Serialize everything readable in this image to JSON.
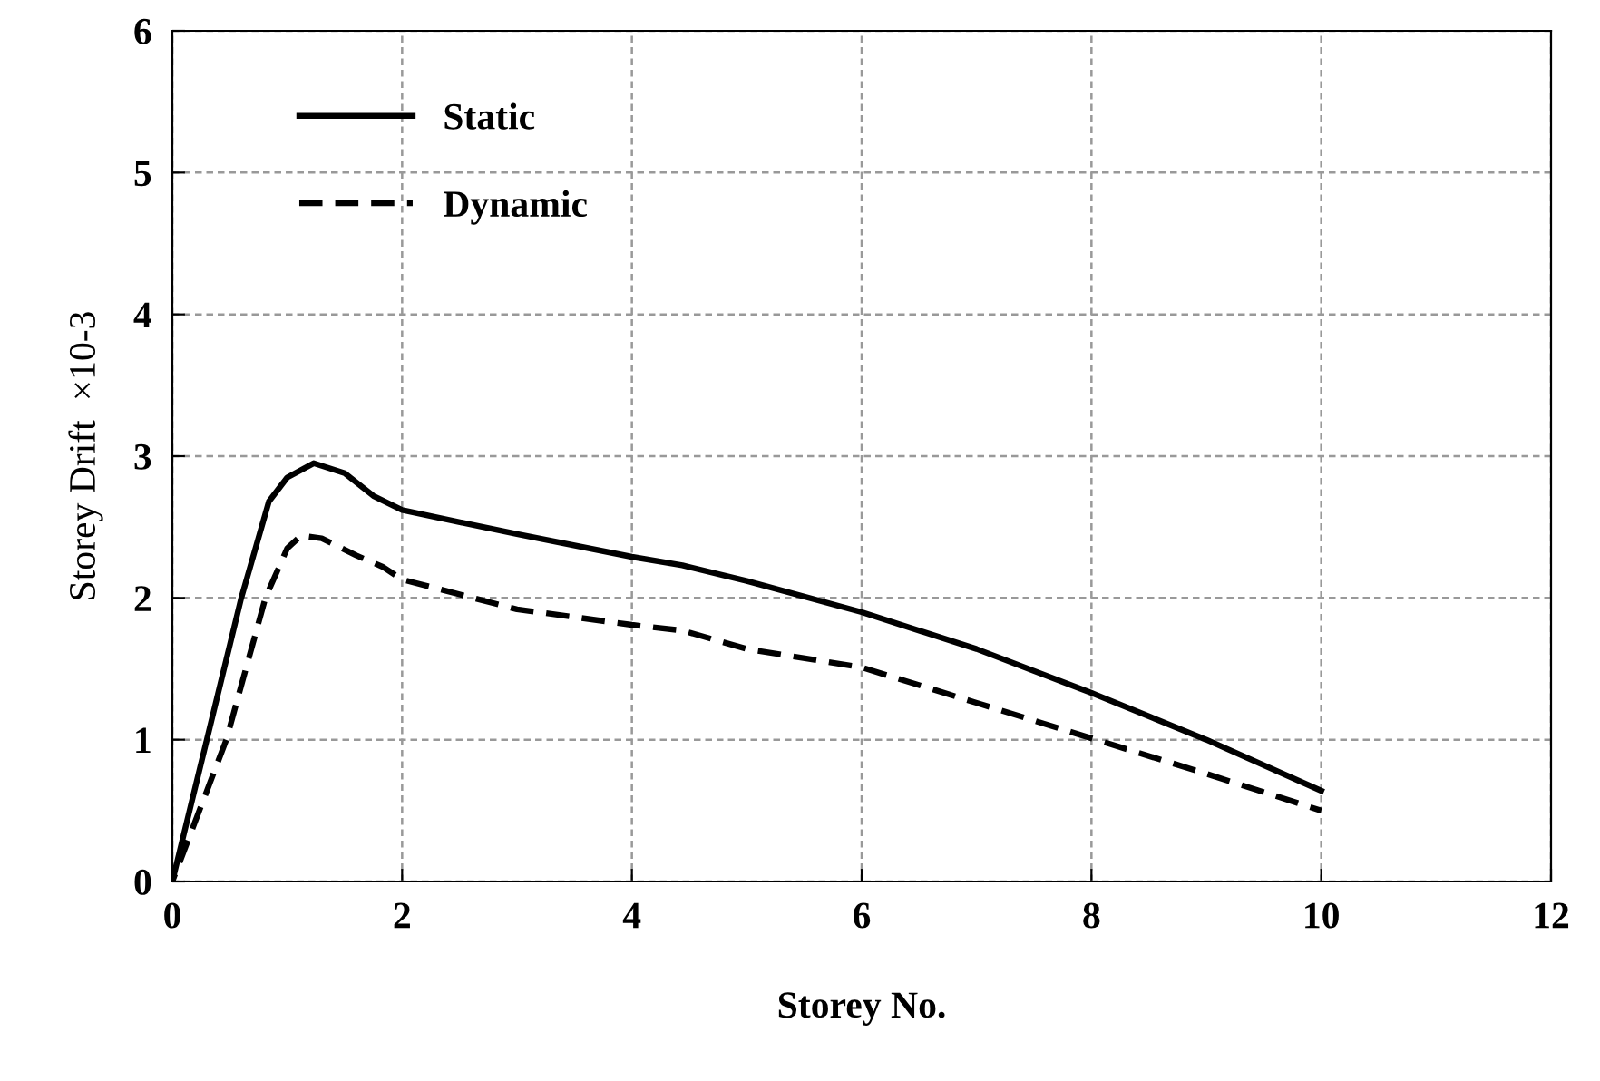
{
  "chart_data": {
    "type": "line",
    "xlabel": "Storey No.",
    "ylabel": "Storey Drift  ×10-3",
    "series": [
      {
        "name": "Static",
        "color": "#000000",
        "line_style": "solid",
        "x": [
          0,
          0.3,
          0.6,
          0.84,
          1.0,
          1.23,
          1.5,
          1.75,
          2,
          3,
          4,
          4.44,
          5,
          6,
          7,
          8,
          9,
          10
        ],
        "values": [
          0,
          1,
          2,
          2.68,
          2.85,
          2.95,
          2.88,
          2.72,
          2.62,
          2.45,
          2.29,
          2.23,
          2.12,
          1.9,
          1.64,
          1.33,
          1.0,
          0.64
        ]
      },
      {
        "name": "Dynamic",
        "color": "#000000",
        "line_style": "dashed",
        "x": [
          0,
          0.47,
          0.81,
          1.0,
          1.12,
          1.3,
          1.6,
          1.83,
          2,
          3,
          4,
          4.44,
          5,
          6,
          7,
          8,
          9,
          10
        ],
        "values": [
          0,
          1,
          2,
          2.35,
          2.44,
          2.42,
          2.3,
          2.22,
          2.13,
          1.92,
          1.81,
          1.77,
          1.64,
          1.51,
          1.26,
          1.01,
          0.76,
          0.5
        ]
      }
    ],
    "xlim": [
      0,
      12
    ],
    "xticks": [
      0,
      2,
      4,
      6,
      8,
      10,
      12
    ],
    "ylim": [
      0,
      6
    ],
    "yticks": [
      0,
      1,
      2,
      3,
      4,
      5,
      6
    ],
    "grid": true,
    "legend": "top left",
    "marker": "none"
  }
}
